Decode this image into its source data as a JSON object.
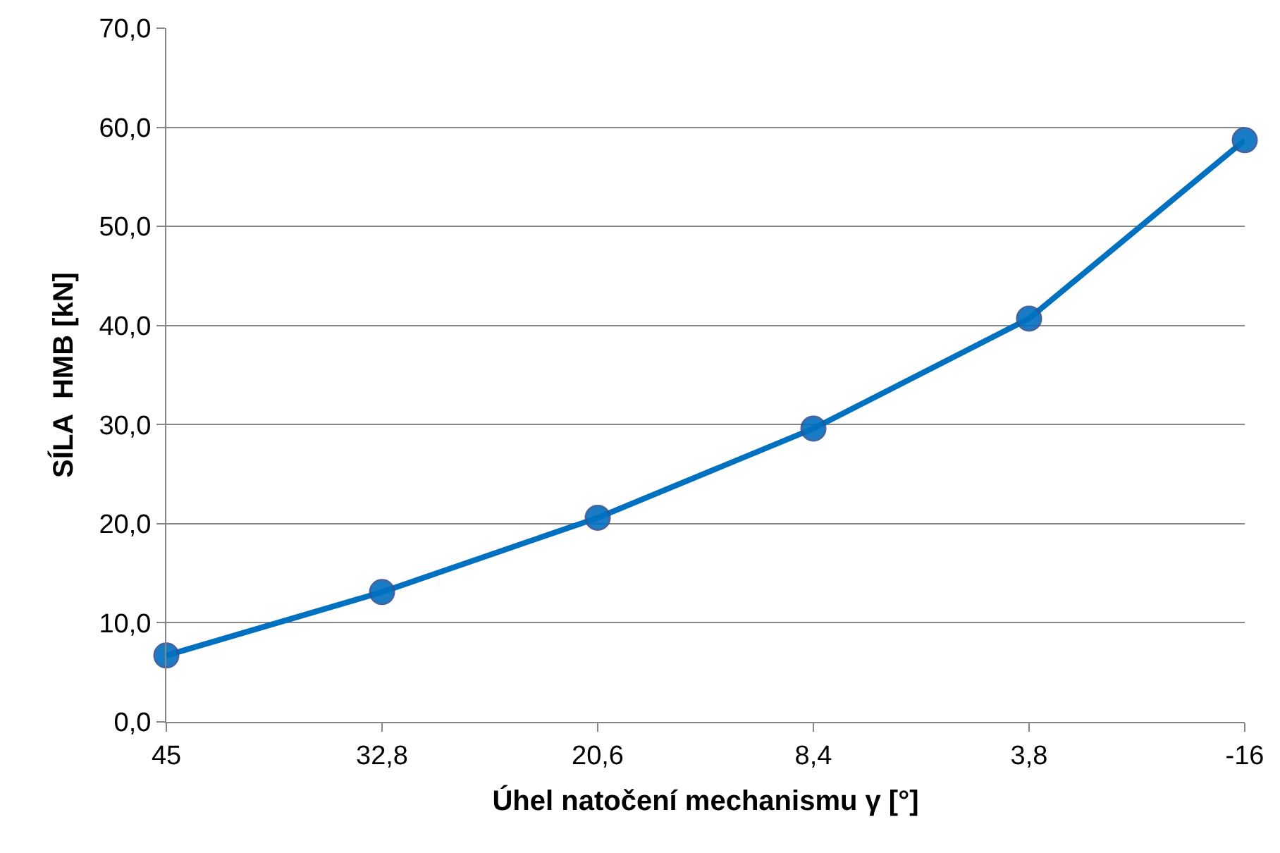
{
  "chart_data": {
    "type": "line",
    "xlabel": "Úhel natočení mechanismu γ [°]",
    "ylabel": "SÍLA  HMB [kN]",
    "categories": [
      "45",
      "32,8",
      "20,6",
      "8,4",
      "3,8",
      "-16"
    ],
    "series": [
      {
        "color": "#0070c0",
        "values": [
          6.7,
          13.1,
          20.6,
          29.6,
          40.7,
          58.7
        ]
      }
    ],
    "ylim": [
      0,
      70
    ],
    "yticks": [
      {
        "value": 0,
        "label": "0,0"
      },
      {
        "value": 10,
        "label": "10,0"
      },
      {
        "value": 20,
        "label": "20,0"
      },
      {
        "value": 30,
        "label": "30,0"
      },
      {
        "value": 40,
        "label": "40,0"
      },
      {
        "value": 50,
        "label": "50,0"
      },
      {
        "value": 60,
        "label": "60,0"
      },
      {
        "value": 70,
        "label": "70,0"
      }
    ],
    "grid": "y",
    "marker": "circle",
    "line_style": "solid"
  }
}
